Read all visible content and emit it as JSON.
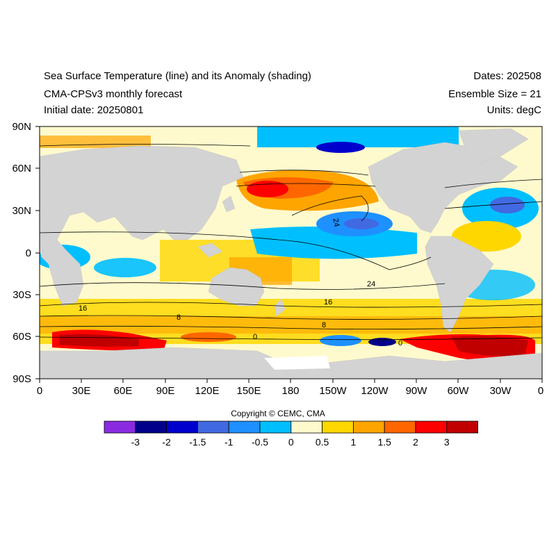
{
  "header": {
    "title": "Sea Surface Temperature (line) and its Anomaly (shading)",
    "subtitle": "CMA-CPSv3 monthly forecast",
    "initial_date": "Initial date: 20250801",
    "dates": "Dates: 202508",
    "ensemble": "Ensemble Size = 21",
    "units": "Units: degC"
  },
  "lat_labels": [
    "90N",
    "60N",
    "30N",
    "0",
    "30S",
    "60S",
    "90S"
  ],
  "lon_labels": [
    "0",
    "30E",
    "60E",
    "90E",
    "120E",
    "150E",
    "180",
    "150W",
    "120W",
    "90W",
    "60W",
    "30W",
    "0"
  ],
  "contour_labels": [
    "24",
    "24",
    "16",
    "8",
    "8",
    "0",
    "0",
    "16"
  ],
  "colorbar": {
    "labels": [
      "-3",
      "-2",
      "-1.5",
      "-1",
      "-0.5",
      "0",
      "0.5",
      "1",
      "1.5",
      "2",
      "3"
    ],
    "colors": [
      "#8a2be2",
      "#00008b",
      "#0000cd",
      "#4169e1",
      "#1e90ff",
      "#00bfff",
      "#fffacd",
      "#ffd700",
      "#ffa500",
      "#ff6600",
      "#ff0000",
      "#c00000"
    ]
  },
  "copyright": "Copyright © CEMC, CMA",
  "colors": {
    "land": "#d3d3d3",
    "ocean_neutral": "#fffacd"
  }
}
